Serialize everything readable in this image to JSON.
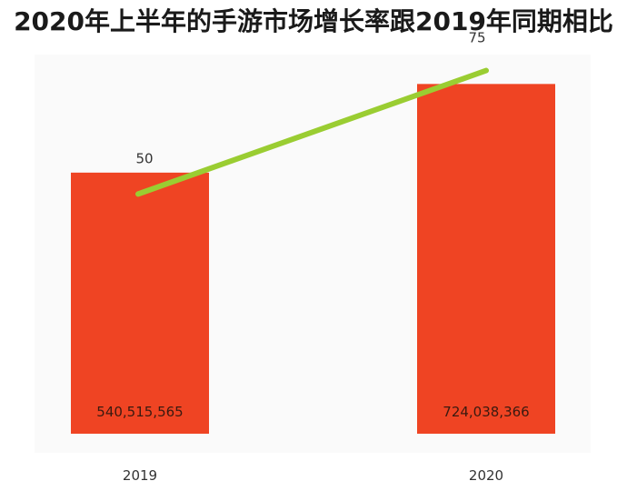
{
  "chart_data": {
    "type": "bar",
    "title": "2020年上半年的手游市场增长率跟2019年同期相比",
    "categories": [
      "2019",
      "2020"
    ],
    "series": [
      {
        "type": "bar",
        "values": [
          540515565,
          724038366
        ],
        "value_labels": [
          "540,515,565",
          "724,038,366"
        ],
        "color": "#EF4423"
      },
      {
        "type": "line",
        "values": [
          50,
          75
        ],
        "value_labels": [
          "50",
          "75"
        ],
        "color": "#9ACD32"
      }
    ],
    "xlabel": "",
    "ylabel": "",
    "ylim": [
      0,
      800000000
    ],
    "y2lim": [
      0,
      80
    ],
    "grid": false,
    "legend": "none"
  }
}
